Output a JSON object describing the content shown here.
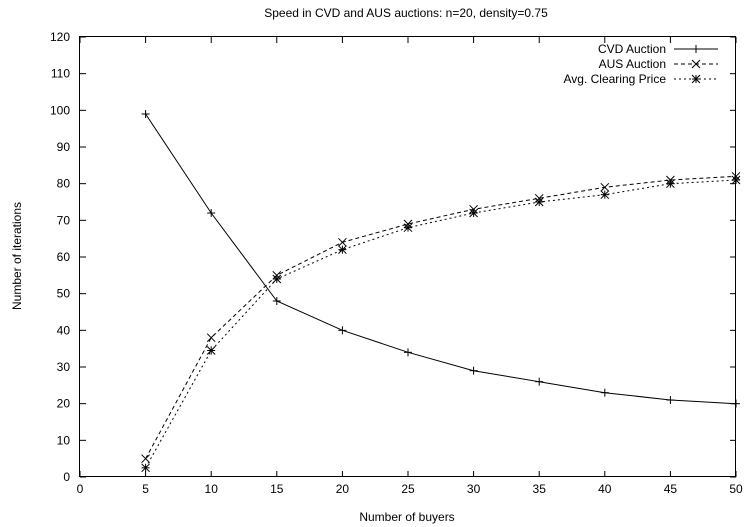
{
  "chart_data": {
    "type": "line",
    "title": "Speed in CVD and AUS auctions: n=20, density=0.75",
    "xlabel": "Number of buyers",
    "ylabel": "Number of iterations",
    "xlim": [
      0,
      50
    ],
    "ylim": [
      0,
      120
    ],
    "xticks": [
      0,
      5,
      10,
      15,
      20,
      25,
      30,
      35,
      40,
      45,
      50
    ],
    "yticks": [
      0,
      10,
      20,
      30,
      40,
      50,
      60,
      70,
      80,
      90,
      100,
      110,
      120
    ],
    "grid": false,
    "legend_position": "top-right",
    "x": [
      5,
      10,
      15,
      20,
      25,
      30,
      35,
      40,
      45,
      50
    ],
    "series": [
      {
        "name": "CVD Auction",
        "style": "solid",
        "marker": "plus",
        "values": [
          99,
          72,
          48,
          40,
          34,
          29,
          26,
          23,
          21,
          20
        ]
      },
      {
        "name": "AUS Auction",
        "style": "dashed",
        "marker": "cross",
        "values": [
          5,
          38,
          55,
          64,
          69,
          73,
          76,
          79,
          81,
          82
        ]
      },
      {
        "name": "Avg. Clearing Price",
        "style": "dotted",
        "marker": "star",
        "values": [
          2.5,
          34.5,
          54,
          62,
          68,
          72,
          75,
          77,
          80,
          81
        ]
      }
    ]
  }
}
